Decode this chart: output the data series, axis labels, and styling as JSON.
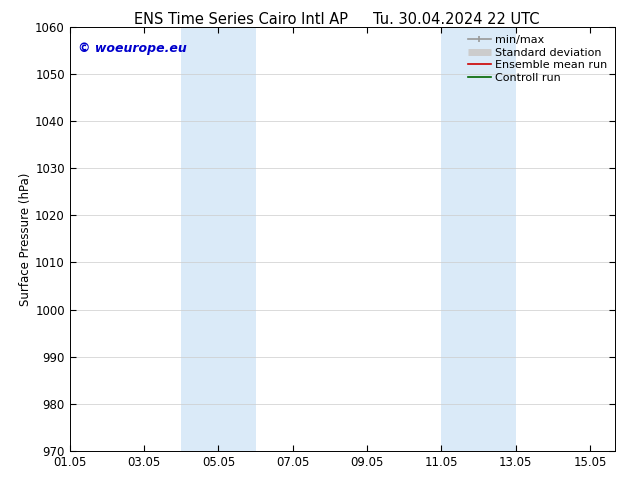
{
  "title_left": "ENS Time Series Cairo Intl AP",
  "title_right": "Tu. 30.04.2024 22 UTC",
  "ylabel": "Surface Pressure (hPa)",
  "ylim": [
    970,
    1060
  ],
  "yticks": [
    970,
    980,
    990,
    1000,
    1010,
    1020,
    1030,
    1040,
    1050,
    1060
  ],
  "xtick_labels": [
    "01.05",
    "03.05",
    "05.05",
    "07.05",
    "09.05",
    "11.05",
    "13.05",
    "15.05"
  ],
  "xtick_positions": [
    0,
    2,
    4,
    6,
    8,
    10,
    12,
    14
  ],
  "xlim": [
    0,
    14.667
  ],
  "shaded_bands": [
    {
      "x_start": 3.0,
      "x_end": 5.0
    },
    {
      "x_start": 10.0,
      "x_end": 12.0
    }
  ],
  "shaded_color": "#daeaf8",
  "watermark": "© woeurope.eu",
  "watermark_color": "#0000cc",
  "legend_items": [
    {
      "label": "min/max",
      "color": "#999999",
      "lw": 1.2
    },
    {
      "label": "Standard deviation",
      "color": "#cccccc",
      "lw": 5
    },
    {
      "label": "Ensemble mean run",
      "color": "#cc0000",
      "lw": 1.2
    },
    {
      "label": "Controll run",
      "color": "#006600",
      "lw": 1.2
    }
  ],
  "bg_color": "#ffffff",
  "grid_color": "#cccccc",
  "title_fontsize": 10.5,
  "tick_fontsize": 8.5,
  "ylabel_fontsize": 8.5,
  "legend_fontsize": 8,
  "watermark_fontsize": 9
}
